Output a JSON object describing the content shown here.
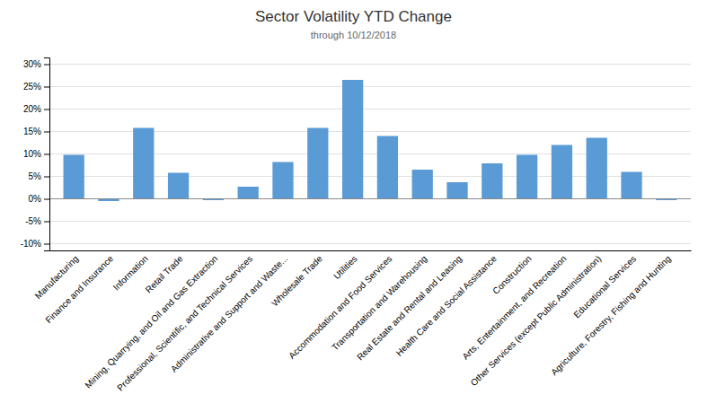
{
  "chart_data": {
    "type": "bar",
    "title": "Sector Volatility YTD Change",
    "subtitle": "through 10/12/2018",
    "categories": [
      "Manufacturing",
      "Finance and Insurance",
      "Information",
      "Retail Trade",
      "Mining, Quarrying, and Oil and Gas Extraction",
      "Professional, Scientific, and Technical Services",
      "Administrative and Support and Waste...",
      "Wholesale Trade",
      "Utilities",
      "Accommodation and Food Services",
      "Transportation and Warehousing",
      "Real Estate and Rental and Leasing",
      "Health Care and Social Assistance",
      "Construction",
      "Arts, Entertainment, and Recreation",
      "Other Services (except Public Administration)",
      "Educational Services",
      "Agriculture, Forestry, Fishing and Hunting"
    ],
    "values": [
      0.098,
      -0.005,
      0.158,
      0.058,
      -0.003,
      0.027,
      0.082,
      0.158,
      0.265,
      0.14,
      0.065,
      0.037,
      0.079,
      0.098,
      0.12,
      0.136,
      0.06,
      -0.003
    ],
    "color": "#5B9BD5",
    "ylim": [
      -0.115,
      0.315
    ],
    "yticks": [
      {
        "value": -0.1,
        "label": "-10%"
      },
      {
        "value": -0.05,
        "label": "-5%"
      },
      {
        "value": 0.0,
        "label": "0%"
      },
      {
        "value": 0.05,
        "label": "5%"
      },
      {
        "value": 0.1,
        "label": "10%"
      },
      {
        "value": 0.15,
        "label": "15%"
      },
      {
        "value": 0.2,
        "label": "20%"
      },
      {
        "value": 0.25,
        "label": "25%"
      },
      {
        "value": 0.3,
        "label": "30%"
      }
    ],
    "grid": true
  }
}
